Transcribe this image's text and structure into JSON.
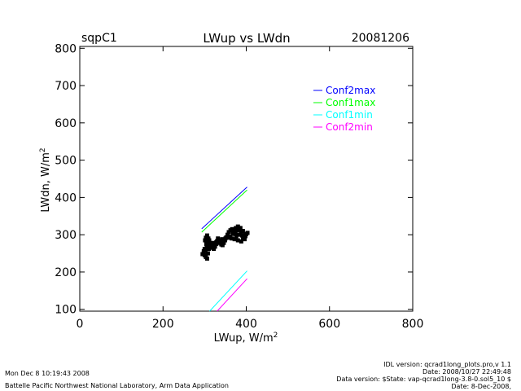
{
  "header": {
    "site": "sqpC1",
    "title": "LWup vs LWdn",
    "date": "20081206"
  },
  "footer": {
    "left_line1": "Mon Dec  8 10:19:43 2008",
    "left_line2": "Battelle Pacific Northwest National Laboratory, Arm Data Application",
    "right_line1": "IDL version: qcrad1long_plots.pro,v 1.1",
    "right_line2": "Date: 2008/10/27 22:49:48",
    "right_line3": "Data version: $State: vap-qcrad1long-3.8-0.sol5_10 $",
    "right_line4": "Date: 8-Dec-2008,"
  },
  "chart_data": {
    "type": "scatter",
    "xlabel": "LWup, W/m",
    "xlabel_sup": "2",
    "ylabel": "LWdn, W/m",
    "ylabel_sup": "2",
    "xlim": [
      0,
      800
    ],
    "ylim": [
      95,
      805
    ],
    "xticks": [
      0,
      200,
      400,
      600,
      800
    ],
    "yticks": [
      100,
      200,
      300,
      400,
      500,
      600,
      700,
      800
    ],
    "grid": false,
    "legend_position": "top-right",
    "series": [
      {
        "name": "Conf2max",
        "color": "#0000ff",
        "kind": "line",
        "points": [
          [
            293,
            316
          ],
          [
            402,
            428
          ]
        ]
      },
      {
        "name": "Conf1max",
        "color": "#00ff00",
        "kind": "line",
        "points": [
          [
            293,
            307
          ],
          [
            402,
            420
          ]
        ]
      },
      {
        "name": "Conf1min",
        "color": "#00ffff",
        "kind": "line",
        "points": [
          [
            312,
            95
          ],
          [
            402,
            203
          ]
        ]
      },
      {
        "name": "Conf2min",
        "color": "#ff00ff",
        "kind": "line",
        "points": [
          [
            330,
            95
          ],
          [
            402,
            182
          ]
        ]
      },
      {
        "color": "#000000",
        "kind": "scatter",
        "points": [
          [
            295,
            248
          ],
          [
            298,
            252
          ],
          [
            300,
            245
          ],
          [
            302,
            258
          ],
          [
            305,
            262
          ],
          [
            307,
            270
          ],
          [
            304,
            275
          ],
          [
            306,
            282
          ],
          [
            309,
            290
          ],
          [
            311,
            285
          ],
          [
            313,
            278
          ],
          [
            316,
            270
          ],
          [
            319,
            265
          ],
          [
            322,
            262
          ],
          [
            325,
            268
          ],
          [
            328,
            275
          ],
          [
            330,
            283
          ],
          [
            332,
            290
          ],
          [
            334,
            285
          ],
          [
            337,
            278
          ],
          [
            340,
            274
          ],
          [
            343,
            272
          ],
          [
            346,
            278
          ],
          [
            349,
            285
          ],
          [
            352,
            293
          ],
          [
            355,
            300
          ],
          [
            358,
            307
          ],
          [
            362,
            312
          ],
          [
            366,
            315
          ],
          [
            370,
            310
          ],
          [
            374,
            306
          ],
          [
            378,
            312
          ],
          [
            382,
            318
          ],
          [
            385,
            312
          ],
          [
            388,
            305
          ],
          [
            390,
            298
          ],
          [
            392,
            292
          ],
          [
            395,
            296
          ],
          [
            398,
            300
          ],
          [
            400,
            302
          ],
          [
            403,
            305
          ],
          [
            396,
            288
          ],
          [
            388,
            282
          ],
          [
            380,
            285
          ],
          [
            372,
            288
          ],
          [
            365,
            290
          ],
          [
            358,
            292
          ],
          [
            350,
            290
          ],
          [
            342,
            288
          ],
          [
            335,
            282
          ],
          [
            328,
            280
          ],
          [
            320,
            278
          ],
          [
            312,
            275
          ],
          [
            305,
            268
          ],
          [
            300,
            262
          ],
          [
            298,
            256
          ],
          [
            303,
            240
          ],
          [
            306,
            236
          ],
          [
            308,
            250
          ],
          [
            310,
            262
          ],
          [
            301,
            285
          ],
          [
            303,
            292
          ],
          [
            306,
            298
          ],
          [
            361,
            295
          ],
          [
            368,
            302
          ],
          [
            375,
            318
          ],
          [
            380,
            322
          ],
          [
            386,
            318
          ],
          [
            392,
            310
          ],
          [
            398,
            296
          ],
          [
            376,
            296
          ],
          [
            383,
            300
          ]
        ]
      }
    ]
  }
}
